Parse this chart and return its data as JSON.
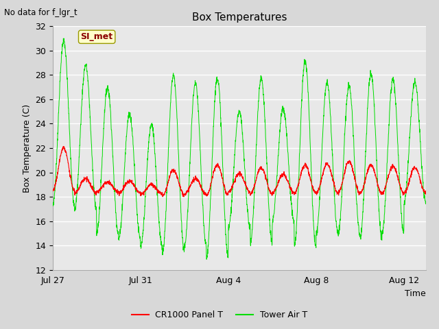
{
  "title": "Box Temperatures",
  "ylabel": "Box Temperature (C)",
  "xlabel": "Time",
  "corner_label": "No data for f_lgr_t",
  "legend_label": "SI_met",
  "ylim": [
    12,
    32
  ],
  "yticks": [
    12,
    14,
    16,
    18,
    20,
    22,
    24,
    26,
    28,
    30,
    32
  ],
  "xtick_labels": [
    "Jul 27",
    "Jul 31",
    "Aug 4",
    "Aug 8",
    "Aug 12"
  ],
  "xtick_pos": [
    0,
    4,
    8,
    12,
    16
  ],
  "fig_bg_color": "#d8d8d8",
  "plot_bg_color": "#e8e8e8",
  "line1_color": "#ff0000",
  "line2_color": "#00dd00",
  "line1_label": "CR1000 Panel T",
  "line2_label": "Tower Air T",
  "n_days": 17,
  "points_per_day": 144,
  "tower_peaks": [
    30.8,
    17.3,
    28.8,
    17.0,
    27.0,
    15.0,
    24.8,
    14.5,
    23.9,
    13.8,
    28.0,
    13.5,
    27.3,
    14.0,
    27.8,
    13.0,
    25.0,
    15.5,
    27.8,
    14.2,
    25.3,
    16.0,
    29.2,
    13.9,
    27.4,
    15.0,
    27.1,
    15.0,
    28.1,
    14.6,
    27.6,
    15.0,
    27.4,
    17.5
  ],
  "panel_peaks": [
    22.0,
    18.5,
    19.5,
    18.3,
    19.2,
    18.4,
    19.3,
    18.3,
    19.0,
    18.2,
    20.2,
    18.1,
    19.5,
    18.2,
    20.6,
    18.1,
    19.9,
    18.4,
    20.4,
    18.2,
    19.8,
    18.3,
    20.6,
    18.3,
    20.7,
    18.3,
    20.9,
    18.3,
    20.6,
    18.3,
    20.5,
    18.3,
    20.4,
    18.3
  ]
}
